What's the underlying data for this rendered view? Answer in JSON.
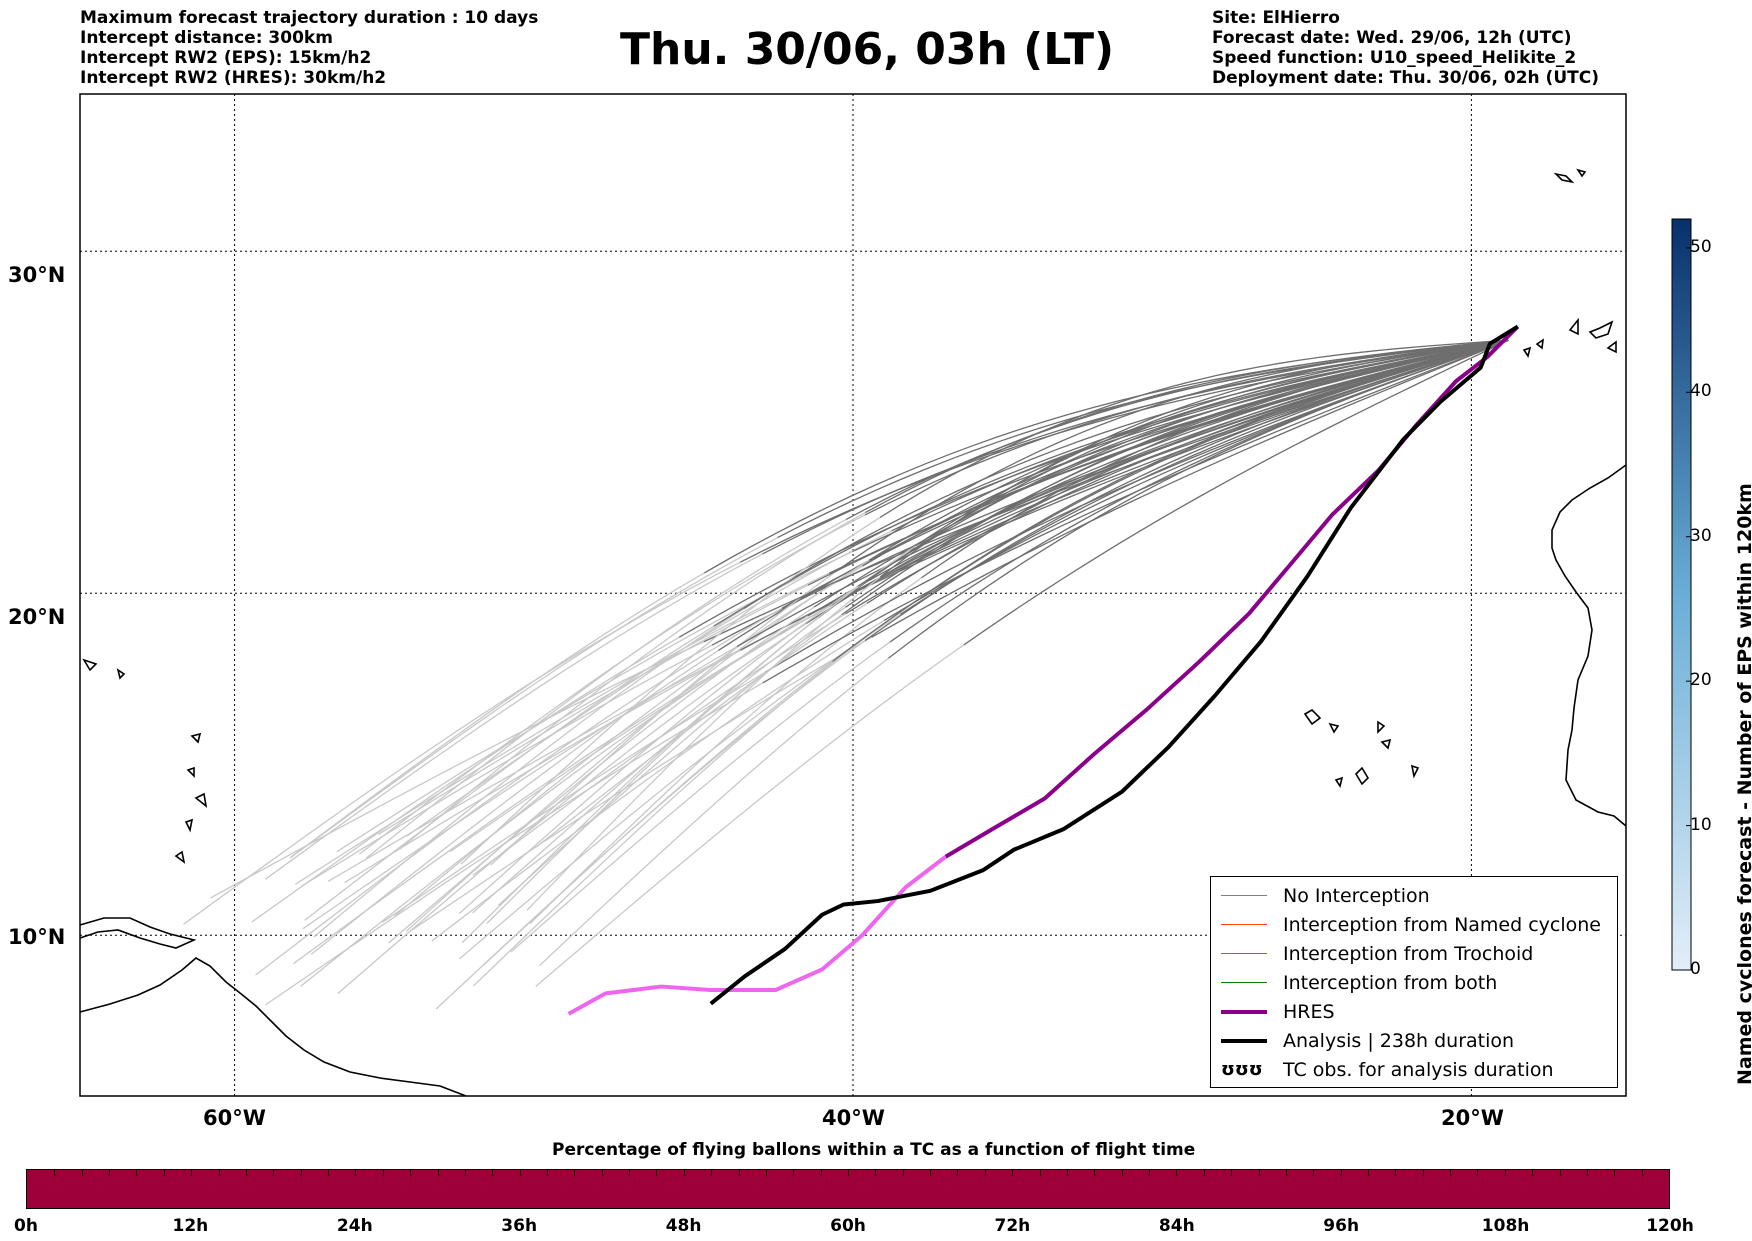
{
  "header_left": [
    "Maximum forecast trajectory duration : 10 days",
    "Intercept distance: 300km",
    "Intercept RW2 (EPS):  15km/h2",
    "Intercept RW2 (HRES): 30km/h2"
  ],
  "title": "Thu. 30/06, 03h (LT)",
  "header_right": [
    "Site: ElHierro",
    "Forecast date: Wed. 29/06, 12h (UTC)",
    "Speed function: U10_speed_Helikite_2",
    "Deployment date: Thu. 30/06, 02h (UTC)"
  ],
  "map": {
    "lat_labels": [
      "30°N",
      "20°N",
      "10°N"
    ],
    "lon_labels": [
      "60°W",
      "40°W",
      "20°W"
    ],
    "lon_range": [
      -65,
      -15
    ],
    "lat_range": [
      5.3,
      34.6
    ]
  },
  "colorbar": {
    "label": "Named cyclones forecast - Number of EPS within 120km",
    "ticks": [
      "0",
      "10",
      "20",
      "30",
      "40",
      "50"
    ],
    "range": [
      0,
      52
    ],
    "color_low": "#e3eef9",
    "color_high": "#08306b"
  },
  "legend": [
    {
      "label": "No Interception",
      "color": "#808080"
    },
    {
      "label": "Interception from Named cyclone",
      "color": "#ff4500"
    },
    {
      "label": "Interception from Trochoid",
      "color": "#808000"
    },
    {
      "label": "Interception from both",
      "color": "#008000"
    },
    {
      "label": "HRES",
      "color": "#8b008b"
    },
    {
      "label": "Analysis | 238h duration",
      "color": "#000000"
    },
    {
      "label": "TC obs. for analysis duration",
      "symbol": "ʊʊʊ"
    }
  ],
  "percentage_bar": {
    "caption": "Percentage of flying ballons within a TC as a function of flight time",
    "ticks": [
      "0h",
      "12h",
      "24h",
      "36h",
      "48h",
      "60h",
      "72h",
      "84h",
      "96h",
      "108h",
      "120h"
    ],
    "color": "#9e003a"
  },
  "tracks": {
    "analysis": {
      "color": "#000000",
      "points": [
        [
          -44.6,
          8.0
        ],
        [
          -43.5,
          8.8
        ],
        [
          -42.2,
          9.6
        ],
        [
          -41.0,
          10.6
        ],
        [
          -40.3,
          10.9
        ],
        [
          -39.2,
          11.0
        ],
        [
          -37.5,
          11.3
        ],
        [
          -35.8,
          11.9
        ],
        [
          -34.8,
          12.5
        ],
        [
          -33.2,
          13.1
        ],
        [
          -31.3,
          14.2
        ],
        [
          -29.8,
          15.5
        ],
        [
          -28.3,
          17.0
        ],
        [
          -26.8,
          18.6
        ],
        [
          -25.3,
          20.5
        ],
        [
          -23.9,
          22.5
        ],
        [
          -22.2,
          24.5
        ],
        [
          -21.0,
          25.6
        ],
        [
          -19.7,
          26.6
        ],
        [
          -19.4,
          27.3
        ],
        [
          -18.5,
          27.8
        ]
      ]
    },
    "hres_future": {
      "color": "#8b008b",
      "points": [
        [
          -37.0,
          12.3
        ],
        [
          -35.5,
          13.1
        ],
        [
          -33.8,
          14.0
        ],
        [
          -32.2,
          15.3
        ],
        [
          -30.5,
          16.6
        ],
        [
          -28.8,
          18.0
        ],
        [
          -27.2,
          19.4
        ],
        [
          -25.8,
          20.9
        ],
        [
          -24.5,
          22.3
        ],
        [
          -23.0,
          23.6
        ],
        [
          -21.8,
          24.9
        ],
        [
          -20.5,
          26.2
        ],
        [
          -19.5,
          26.9
        ],
        [
          -18.5,
          27.8
        ]
      ]
    },
    "hres_past": {
      "color": "#ee66ee",
      "points": [
        [
          -49.2,
          7.7
        ],
        [
          -48.0,
          8.3
        ],
        [
          -46.2,
          8.5
        ],
        [
          -44.6,
          8.4
        ],
        [
          -43.4,
          8.4
        ],
        [
          -42.5,
          8.4
        ],
        [
          -41.0,
          9.0
        ],
        [
          -39.7,
          10.0
        ],
        [
          -38.3,
          11.4
        ],
        [
          -37.0,
          12.3
        ]
      ]
    }
  }
}
